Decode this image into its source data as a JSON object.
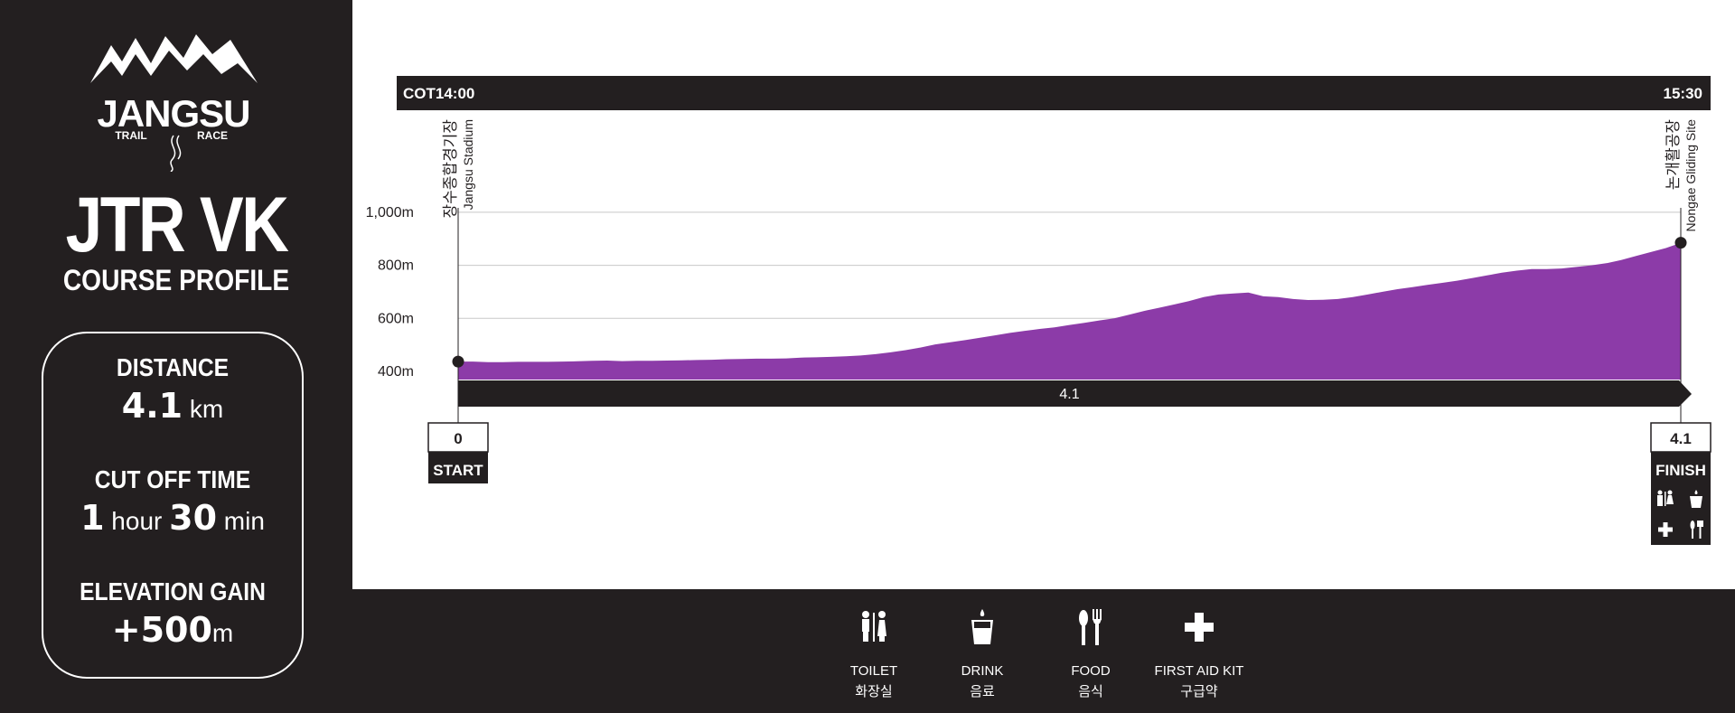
{
  "brand": {
    "name": "JANGSU",
    "tagline_left": "TRAIL",
    "tagline_right": "RACE"
  },
  "race": {
    "title": "JTR VK",
    "subtitle": "COURSE PROFILE"
  },
  "stats": {
    "distance_label": "DISTANCE",
    "distance_value": "4.1",
    "distance_unit": "km",
    "cutoff_label": "CUT OFF TIME",
    "cutoff_hours": "1",
    "cutoff_hours_unit": "hour",
    "cutoff_minutes": "30",
    "cutoff_minutes_unit": "min",
    "gain_label": "ELEVATION GAIN",
    "gain_value": "+500",
    "gain_unit": "m"
  },
  "cot": {
    "label": "COT",
    "start": "14:00",
    "end": "15:30"
  },
  "colors": {
    "profile": "#8c3ba8",
    "dark": "#231f20",
    "grid": "#c8c8c8"
  },
  "chart_data": {
    "type": "area",
    "xlabel": "",
    "ylabel": "",
    "xlim": [
      0,
      4.1
    ],
    "ylim": [
      380,
      1050
    ],
    "yticks": [
      400,
      600,
      800,
      1000
    ],
    "ytick_labels": [
      "400m",
      "600m",
      "800m",
      "1,000m"
    ],
    "grid": true,
    "x": [
      0,
      0.05,
      0.1,
      0.15,
      0.2,
      0.25,
      0.3,
      0.35,
      0.4,
      0.45,
      0.5,
      0.55,
      0.6,
      0.65,
      0.7,
      0.75,
      0.8,
      0.85,
      0.9,
      0.95,
      1.0,
      1.05,
      1.1,
      1.15,
      1.2,
      1.25,
      1.3,
      1.35,
      1.4,
      1.45,
      1.5,
      1.55,
      1.6,
      1.65,
      1.7,
      1.75,
      1.8,
      1.85,
      1.9,
      1.95,
      2.0,
      2.05,
      2.1,
      2.15,
      2.2,
      2.25,
      2.3,
      2.35,
      2.4,
      2.45,
      2.5,
      2.55,
      2.6,
      2.65,
      2.7,
      2.75,
      2.8,
      2.85,
      2.9,
      2.95,
      3.0,
      3.05,
      3.1,
      3.15,
      3.2,
      3.25,
      3.3,
      3.35,
      3.4,
      3.45,
      3.5,
      3.55,
      3.6,
      3.65,
      3.7,
      3.75,
      3.8,
      3.85,
      3.9,
      3.95,
      4.0,
      4.05,
      4.1
    ],
    "y": [
      437,
      437,
      435,
      435,
      436,
      436,
      436,
      437,
      438,
      440,
      441,
      439,
      440,
      440,
      441,
      442,
      443,
      444,
      446,
      447,
      448,
      448,
      449,
      452,
      453,
      455,
      457,
      460,
      465,
      472,
      480,
      490,
      502,
      510,
      518,
      527,
      536,
      545,
      553,
      560,
      566,
      575,
      583,
      592,
      600,
      614,
      628,
      640,
      652,
      665,
      680,
      690,
      694,
      697,
      683,
      680,
      673,
      669,
      670,
      673,
      680,
      690,
      700,
      710,
      718,
      726,
      734,
      742,
      752,
      762,
      772,
      780,
      786,
      786,
      788,
      794,
      800,
      808,
      820,
      835,
      850,
      865,
      885
    ],
    "segments": [
      {
        "label": "4.1",
        "from": 0,
        "to": 4.1
      }
    ],
    "checkpoints": [
      {
        "km": "0",
        "name": "START",
        "ko": "장수종합경기장",
        "en": "Jangsu Stadium"
      },
      {
        "km": "4.1",
        "name": "FINISH",
        "ko": "논개활공장",
        "en": "Nongae Gliding Site",
        "services": [
          "toilet-icon",
          "drink-icon",
          "first-aid-icon",
          "food-icon"
        ]
      }
    ]
  },
  "legend": [
    {
      "icon": "toilet-icon",
      "en": "TOILET",
      "ko": "화장실"
    },
    {
      "icon": "drink-icon",
      "en": "DRINK",
      "ko": "음료"
    },
    {
      "icon": "food-icon",
      "en": "FOOD",
      "ko": "음식"
    },
    {
      "icon": "first-aid-icon",
      "en": "FIRST AID KIT",
      "ko": "구급약"
    }
  ]
}
